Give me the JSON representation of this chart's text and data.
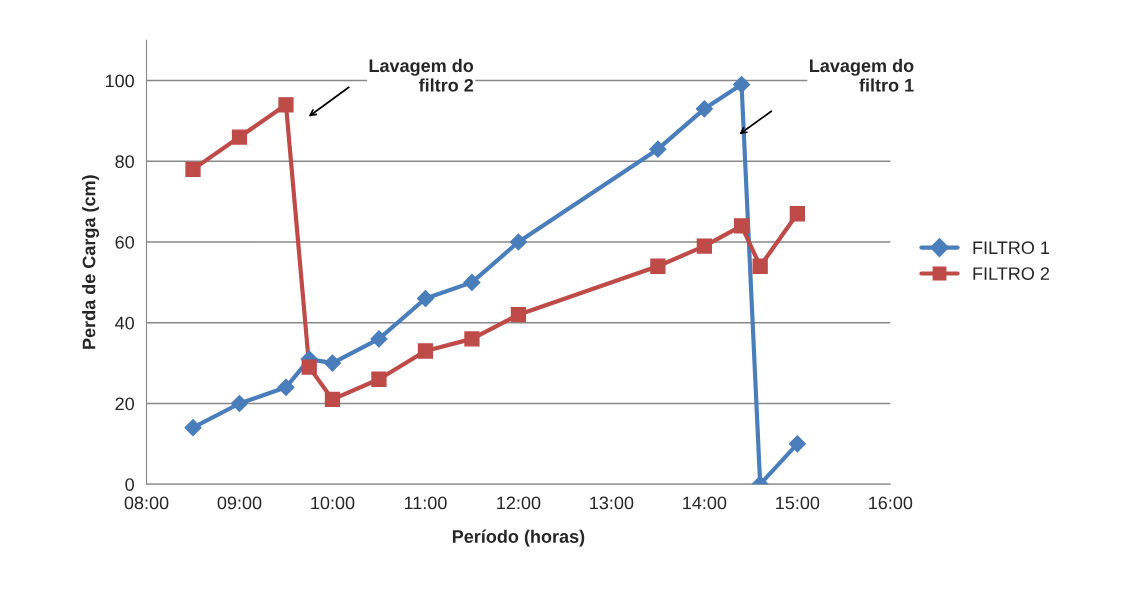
{
  "chart_data": {
    "type": "line",
    "xlabel": "Período (horas)",
    "ylabel": "Perda de Carga (cm)",
    "xlim": [
      8,
      16
    ],
    "xticks": [
      {
        "value": 8,
        "label": "08:00"
      },
      {
        "value": 9,
        "label": "09:00"
      },
      {
        "value": 10,
        "label": "10:00"
      },
      {
        "value": 11,
        "label": "11:00"
      },
      {
        "value": 12,
        "label": "12:00"
      },
      {
        "value": 13,
        "label": "13:00"
      },
      {
        "value": 14,
        "label": "14:00"
      },
      {
        "value": 15,
        "label": "15:00"
      },
      {
        "value": 16,
        "label": "16:00"
      }
    ],
    "ylim": [
      0,
      110
    ],
    "yticks": [
      0,
      20,
      40,
      60,
      80,
      100
    ],
    "grid": "y",
    "legend": "right",
    "series": [
      {
        "name": "FILTRO 1",
        "color": "#4a7ebb",
        "marker": "diamond",
        "x": [
          8.5,
          9.0,
          9.5,
          9.75,
          10.0,
          10.5,
          11.0,
          11.5,
          12.0,
          13.5,
          14.0,
          14.4,
          14.6,
          15.0
        ],
        "values": [
          14,
          20,
          24,
          31,
          30,
          36,
          46,
          50,
          60,
          83,
          93,
          99,
          0,
          10
        ]
      },
      {
        "name": "FILTRO 2",
        "color": "#be4b48",
        "marker": "square",
        "x": [
          8.5,
          9.0,
          9.5,
          9.75,
          10.0,
          10.5,
          11.0,
          11.5,
          12.0,
          13.5,
          14.0,
          14.4,
          14.6,
          15.0
        ],
        "values": [
          78,
          86,
          94,
          29,
          21,
          26,
          33,
          36,
          42,
          54,
          59,
          64,
          54,
          67
        ]
      }
    ],
    "annotations": [
      "Lavagem do\nfiltro 2",
      "Lavagem do\nfiltro 1"
    ]
  }
}
